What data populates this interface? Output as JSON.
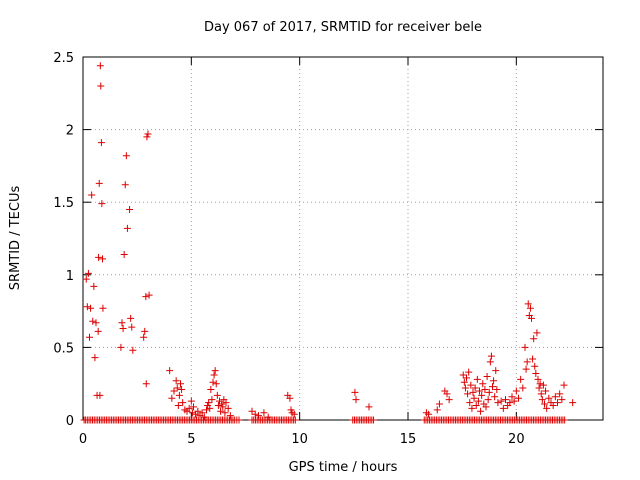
{
  "chart_data": {
    "type": "scatter",
    "title": "Day 067 of 2017, SRMTID for receiver bele",
    "xlabel": "GPS time / hours",
    "ylabel": "SRMTID / TECUs",
    "xlim": [
      0,
      24
    ],
    "ylim": [
      0,
      2.5
    ],
    "xticks": [
      0,
      5,
      10,
      15,
      20
    ],
    "yticks": [
      0,
      0.5,
      1,
      1.5,
      2,
      2.5
    ],
    "xtick_labels": [
      "0",
      "5",
      "10",
      "15",
      "20"
    ],
    "ytick_labels": [
      "0",
      "0.5",
      "1",
      "1.5",
      "2",
      "2.5"
    ],
    "grid": true,
    "marker": "+",
    "color": "#dd0000",
    "series": [
      {
        "name": "SRMTID",
        "points": [
          [
            0.15,
            0.97
          ],
          [
            0.2,
            0.78
          ],
          [
            0.25,
            1.01
          ],
          [
            0.3,
            0.57
          ],
          [
            0.35,
            0.77
          ],
          [
            0.4,
            1.55
          ],
          [
            0.45,
            0.68
          ],
          [
            0.5,
            0.92
          ],
          [
            0.55,
            0.43
          ],
          [
            0.6,
            0.67
          ],
          [
            0.65,
            0.17
          ],
          [
            0.7,
            0.61
          ],
          [
            0.72,
            1.12
          ],
          [
            0.75,
            1.63
          ],
          [
            0.8,
            2.44
          ],
          [
            0.82,
            2.3
          ],
          [
            0.85,
            1.91
          ],
          [
            0.87,
            1.49
          ],
          [
            0.9,
            1.11
          ],
          [
            0.92,
            0.77
          ],
          [
            0.78,
            0.17
          ],
          [
            1.75,
            0.5
          ],
          [
            1.8,
            0.67
          ],
          [
            1.85,
            0.63
          ],
          [
            1.9,
            1.14
          ],
          [
            1.95,
            1.62
          ],
          [
            2.0,
            1.82
          ],
          [
            2.05,
            1.32
          ],
          [
            2.15,
            1.45
          ],
          [
            2.2,
            0.7
          ],
          [
            2.25,
            0.64
          ],
          [
            2.3,
            0.48
          ],
          [
            2.8,
            0.57
          ],
          [
            2.85,
            0.61
          ],
          [
            2.9,
            0.85
          ],
          [
            2.95,
            1.95
          ],
          [
            3.0,
            1.97
          ],
          [
            3.05,
            0.86
          ],
          [
            2.92,
            0.25
          ],
          [
            4.0,
            0.34
          ],
          [
            4.1,
            0.15
          ],
          [
            4.2,
            0.2
          ],
          [
            4.3,
            0.27
          ],
          [
            4.35,
            0.22
          ],
          [
            4.4,
            0.1
          ],
          [
            4.45,
            0.17
          ],
          [
            4.5,
            0.25
          ],
          [
            4.55,
            0.21
          ],
          [
            4.6,
            0.12
          ],
          [
            4.7,
            0.07
          ],
          [
            4.8,
            0.06
          ],
          [
            4.9,
            0.08
          ],
          [
            5.0,
            0.13
          ],
          [
            5.05,
            0.05
          ],
          [
            5.1,
            0.09
          ],
          [
            5.2,
            0.04
          ],
          [
            5.3,
            0.06
          ],
          [
            5.4,
            0.03
          ],
          [
            5.5,
            0.05
          ],
          [
            5.6,
            0.02
          ],
          [
            5.7,
            0.07
          ],
          [
            5.75,
            0.1
          ],
          [
            5.8,
            0.12
          ],
          [
            5.85,
            0.08
          ],
          [
            5.9,
            0.21
          ],
          [
            5.95,
            0.14
          ],
          [
            6.0,
            0.26
          ],
          [
            6.05,
            0.31
          ],
          [
            6.1,
            0.34
          ],
          [
            6.15,
            0.25
          ],
          [
            6.2,
            0.17
          ],
          [
            6.25,
            0.1
          ],
          [
            6.3,
            0.13
          ],
          [
            6.35,
            0.06
          ],
          [
            6.4,
            0.11
          ],
          [
            6.45,
            0.09
          ],
          [
            6.5,
            0.14
          ],
          [
            6.55,
            0.05
          ],
          [
            6.6,
            0.12
          ],
          [
            6.7,
            0.08
          ],
          [
            6.8,
            0.03
          ],
          [
            7.8,
            0.06
          ],
          [
            7.95,
            0.04
          ],
          [
            8.1,
            0.03
          ],
          [
            8.35,
            0.05
          ],
          [
            8.55,
            0.02
          ],
          [
            9.45,
            0.17
          ],
          [
            9.55,
            0.15
          ],
          [
            9.6,
            0.07
          ],
          [
            9.65,
            0.05
          ],
          [
            9.75,
            0.04
          ],
          [
            12.55,
            0.19
          ],
          [
            12.6,
            0.14
          ],
          [
            13.2,
            0.09
          ],
          [
            15.85,
            0.05
          ],
          [
            15.95,
            0.04
          ],
          [
            16.35,
            0.07
          ],
          [
            16.45,
            0.11
          ],
          [
            16.7,
            0.2
          ],
          [
            16.8,
            0.18
          ],
          [
            16.9,
            0.14
          ],
          [
            17.55,
            0.31
          ],
          [
            17.6,
            0.26
          ],
          [
            17.65,
            0.22
          ],
          [
            17.7,
            0.29
          ],
          [
            17.75,
            0.18
          ],
          [
            17.8,
            0.33
          ],
          [
            17.85,
            0.12
          ],
          [
            17.9,
            0.24
          ],
          [
            17.95,
            0.08
          ],
          [
            18.0,
            0.19
          ],
          [
            18.05,
            0.15
          ],
          [
            18.1,
            0.22
          ],
          [
            18.15,
            0.1
          ],
          [
            18.2,
            0.28
          ],
          [
            18.25,
            0.13
          ],
          [
            18.3,
            0.2
          ],
          [
            18.35,
            0.06
          ],
          [
            18.4,
            0.17
          ],
          [
            18.45,
            0.25
          ],
          [
            18.5,
            0.11
          ],
          [
            18.55,
            0.21
          ],
          [
            18.6,
            0.09
          ],
          [
            18.65,
            0.3
          ],
          [
            18.7,
            0.14
          ],
          [
            18.75,
            0.19
          ],
          [
            18.8,
            0.4
          ],
          [
            18.85,
            0.44
          ],
          [
            18.9,
            0.23
          ],
          [
            18.95,
            0.27
          ],
          [
            19.0,
            0.16
          ],
          [
            19.05,
            0.34
          ],
          [
            19.1,
            0.21
          ],
          [
            19.15,
            0.12
          ],
          [
            19.3,
            0.13
          ],
          [
            19.4,
            0.08
          ],
          [
            19.5,
            0.14
          ],
          [
            19.6,
            0.1
          ],
          [
            19.7,
            0.12
          ],
          [
            19.8,
            0.16
          ],
          [
            19.9,
            0.13
          ],
          [
            20.0,
            0.2
          ],
          [
            20.1,
            0.15
          ],
          [
            20.2,
            0.28
          ],
          [
            20.3,
            0.22
          ],
          [
            20.4,
            0.5
          ],
          [
            20.45,
            0.35
          ],
          [
            20.5,
            0.4
          ],
          [
            20.55,
            0.8
          ],
          [
            20.6,
            0.72
          ],
          [
            20.65,
            0.77
          ],
          [
            20.7,
            0.7
          ],
          [
            20.75,
            0.42
          ],
          [
            20.8,
            0.56
          ],
          [
            20.85,
            0.37
          ],
          [
            20.9,
            0.32
          ],
          [
            20.95,
            0.6
          ],
          [
            21.0,
            0.28
          ],
          [
            21.05,
            0.22
          ],
          [
            21.1,
            0.25
          ],
          [
            21.15,
            0.18
          ],
          [
            21.2,
            0.14
          ],
          [
            21.25,
            0.24
          ],
          [
            21.3,
            0.11
          ],
          [
            21.35,
            0.2
          ],
          [
            21.4,
            0.08
          ],
          [
            21.5,
            0.15
          ],
          [
            21.6,
            0.12
          ],
          [
            21.7,
            0.1
          ],
          [
            21.8,
            0.16
          ],
          [
            21.9,
            0.12
          ],
          [
            22.0,
            0.18
          ],
          [
            22.1,
            0.14
          ],
          [
            22.2,
            0.24
          ],
          [
            22.6,
            0.12
          ]
        ],
        "baseline_y": 0,
        "baseline_x": [
          0.05,
          0.12,
          0.2,
          0.28,
          0.36,
          0.44,
          0.52,
          0.6,
          0.68,
          0.76,
          0.84,
          0.92,
          1.0,
          1.08,
          1.16,
          1.24,
          1.32,
          1.4,
          1.48,
          1.56,
          1.64,
          1.72,
          1.8,
          1.88,
          1.96,
          2.04,
          2.12,
          2.2,
          2.28,
          2.36,
          2.44,
          2.52,
          2.6,
          2.68,
          2.76,
          2.84,
          2.92,
          3.0,
          3.08,
          3.16,
          3.24,
          3.32,
          3.4,
          3.48,
          3.56,
          3.64,
          3.72,
          3.8,
          3.88,
          3.96,
          4.04,
          4.12,
          4.2,
          4.28,
          4.36,
          4.44,
          4.52,
          4.6,
          4.68,
          4.76,
          4.84,
          4.92,
          5.0,
          5.08,
          5.16,
          5.24,
          5.32,
          5.4,
          5.48,
          5.56,
          5.64,
          5.72,
          5.8,
          5.88,
          5.96,
          6.04,
          6.12,
          6.2,
          6.28,
          6.36,
          6.44,
          6.52,
          6.6,
          6.68,
          6.76,
          6.84,
          6.92,
          7.0,
          7.1,
          7.2,
          7.8,
          7.88,
          7.96,
          8.04,
          8.12,
          8.2,
          8.28,
          8.36,
          8.44,
          8.52,
          8.6,
          8.68,
          8.76,
          8.84,
          8.92,
          9.0,
          9.08,
          9.16,
          9.24,
          9.32,
          9.4,
          9.48,
          9.56,
          9.64,
          9.72,
          9.8,
          12.45,
          12.53,
          12.61,
          12.69,
          12.77,
          12.85,
          12.93,
          13.01,
          13.09,
          13.17,
          13.25,
          13.33,
          13.41,
          15.75,
          15.83,
          15.91,
          15.99,
          16.07,
          16.15,
          16.23,
          16.31,
          16.39,
          16.47,
          16.55,
          16.63,
          16.71,
          16.79,
          16.87,
          16.95,
          17.03,
          17.11,
          17.19,
          17.27,
          17.35,
          17.43,
          17.51,
          17.59,
          17.67,
          17.75,
          17.83,
          17.91,
          17.99,
          18.07,
          18.15,
          18.23,
          18.31,
          18.39,
          18.47,
          18.55,
          18.63,
          18.71,
          18.79,
          18.87,
          18.95,
          19.03,
          19.11,
          19.19,
          19.27,
          19.35,
          19.43,
          19.51,
          19.59,
          19.67,
          19.75,
          19.83,
          19.91,
          19.99,
          20.07,
          20.15,
          20.23,
          20.31,
          20.39,
          20.47,
          20.55,
          20.63,
          20.71,
          20.79,
          20.87,
          20.95,
          21.03,
          21.11,
          21.19,
          21.27,
          21.35,
          21.43,
          21.51,
          21.59,
          21.67,
          21.75,
          21.83,
          21.91,
          21.99,
          22.07,
          22.15,
          22.23
        ]
      }
    ]
  }
}
